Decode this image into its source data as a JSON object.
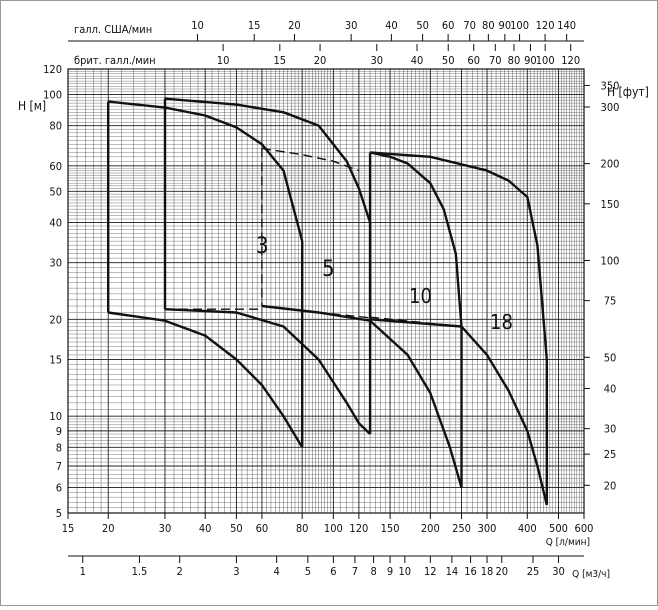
{
  "chart_data": {
    "type": "line",
    "scales": "log-log",
    "grid": true,
    "axes": {
      "left": {
        "label": "H [м]",
        "ticks": [
          5,
          6,
          7,
          8,
          9,
          10,
          15,
          20,
          30,
          40,
          50,
          60,
          80,
          100,
          120
        ],
        "range": [
          5,
          120
        ]
      },
      "right": {
        "label": "H [фут]",
        "ticks": [
          20,
          25,
          30,
          40,
          50,
          75,
          100,
          150,
          200,
          300,
          350
        ],
        "range": [
          16.4,
          393.7
        ]
      },
      "bottom": {
        "label": "Q [л/мин]",
        "ticks": [
          15,
          20,
          30,
          40,
          50,
          60,
          80,
          100,
          120,
          150,
          200,
          250,
          300,
          400,
          500,
          600
        ],
        "range": [
          15,
          600
        ]
      },
      "bottom2": {
        "label": "Q [м3/ч]",
        "ticks": [
          1,
          1.5,
          2,
          3,
          4,
          5,
          6,
          7,
          8,
          9,
          10,
          12,
          14,
          16,
          18,
          20,
          25,
          30
        ],
        "range": [
          0.9,
          36
        ]
      },
      "top": {
        "label": "галл. США/мин",
        "ticks": [
          10,
          15,
          20,
          30,
          40,
          50,
          60,
          70,
          80,
          90,
          100,
          120,
          140
        ],
        "range": [
          3.96,
          158.5
        ]
      },
      "top2": {
        "label": "брит. галл./мин",
        "ticks": [
          10,
          15,
          20,
          30,
          40,
          50,
          60,
          70,
          80,
          90,
          100,
          120
        ],
        "range": [
          3.3,
          132
        ]
      }
    },
    "series": [
      {
        "name": "3",
        "q_range": [
          20,
          80
        ],
        "upper": [
          [
            20,
            95
          ],
          [
            30,
            91
          ],
          [
            40,
            86
          ],
          [
            50,
            79
          ],
          [
            60,
            70
          ],
          [
            70,
            58
          ],
          [
            80,
            35
          ]
        ],
        "lower": [
          [
            20,
            21
          ],
          [
            30,
            19.8
          ],
          [
            40,
            17.8
          ],
          [
            50,
            15
          ],
          [
            60,
            12.5
          ],
          [
            70,
            10
          ],
          [
            80,
            8
          ]
        ],
        "dashed": [
          [
            30,
            21.5
          ],
          [
            60,
            21.5
          ]
        ]
      },
      {
        "name": "5",
        "q_range": [
          30,
          130
        ],
        "upper": [
          [
            30,
            97
          ],
          [
            50,
            93
          ],
          [
            70,
            88
          ],
          [
            90,
            80
          ],
          [
            110,
            62
          ],
          [
            120,
            51
          ],
          [
            130,
            40
          ]
        ],
        "lower": [
          [
            30,
            21.5
          ],
          [
            50,
            21
          ],
          [
            70,
            19
          ],
          [
            90,
            15
          ],
          [
            110,
            11
          ],
          [
            120,
            9.5
          ],
          [
            130,
            8.8
          ]
        ],
        "dashed": [
          [
            60,
            68
          ],
          [
            80,
            65
          ],
          [
            100,
            62
          ],
          [
            120,
            58
          ]
        ]
      },
      {
        "name": "10",
        "q_range": [
          60,
          250
        ],
        "upper": [
          [
            130,
            66
          ],
          [
            150,
            64
          ],
          [
            170,
            61
          ],
          [
            200,
            53
          ],
          [
            220,
            44
          ],
          [
            240,
            32
          ],
          [
            250,
            19
          ]
        ],
        "lower": [
          [
            60,
            22
          ],
          [
            90,
            21
          ],
          [
            130,
            19.8
          ],
          [
            170,
            15.5
          ],
          [
            200,
            11.8
          ],
          [
            230,
            8
          ],
          [
            250,
            6
          ]
        ],
        "dashed": [
          [
            60,
            22
          ],
          [
            130,
            20.2
          ]
        ]
      },
      {
        "name": "18",
        "q_range": [
          130,
          460
        ],
        "upper": [
          [
            130,
            66
          ],
          [
            200,
            64
          ],
          [
            300,
            58
          ],
          [
            350,
            54
          ],
          [
            400,
            48
          ],
          [
            430,
            34
          ],
          [
            460,
            15
          ]
        ],
        "lower": [
          [
            130,
            20
          ],
          [
            250,
            19
          ],
          [
            300,
            15.5
          ],
          [
            350,
            12
          ],
          [
            400,
            9
          ],
          [
            430,
            7
          ],
          [
            460,
            5.3
          ]
        ],
        "dashed": [
          [
            130,
            20.3
          ],
          [
            250,
            19
          ]
        ]
      }
    ]
  }
}
